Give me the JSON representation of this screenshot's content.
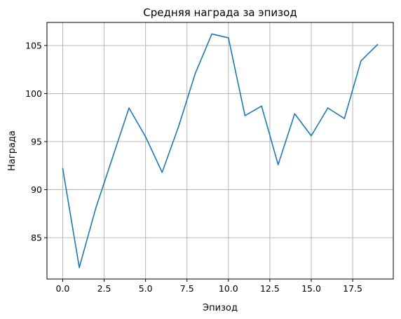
{
  "chart_data": {
    "type": "line",
    "title": "Средняя награда за эпизод",
    "xlabel": "Эпизод",
    "ylabel": "Награда",
    "x": [
      0,
      1,
      2,
      3,
      4,
      5,
      6,
      7,
      8,
      9,
      10,
      11,
      12,
      13,
      14,
      15,
      16,
      17,
      18,
      19
    ],
    "series": [
      {
        "values": [
          92.2,
          81.9,
          88.1,
          93.3,
          98.5,
          95.5,
          91.8,
          96.6,
          102.1,
          106.2,
          105.8,
          97.7,
          98.7,
          92.6,
          97.9,
          95.6,
          98.5,
          97.4,
          103.4,
          105.1
        ],
        "color": "#1f77b4"
      }
    ],
    "xlim": [
      -0.95,
      19.95
    ],
    "ylim": [
      80.7,
      107.4
    ],
    "xticks": [
      0.0,
      2.5,
      5.0,
      7.5,
      10.0,
      12.5,
      15.0,
      17.5
    ],
    "xtick_labels": [
      "0.0",
      "2.5",
      "5.0",
      "7.5",
      "10.0",
      "12.5",
      "15.0",
      "17.5"
    ],
    "yticks": [
      85,
      90,
      95,
      100,
      105
    ],
    "ytick_labels": [
      "85",
      "90",
      "95",
      "100",
      "105"
    ],
    "grid": true
  }
}
